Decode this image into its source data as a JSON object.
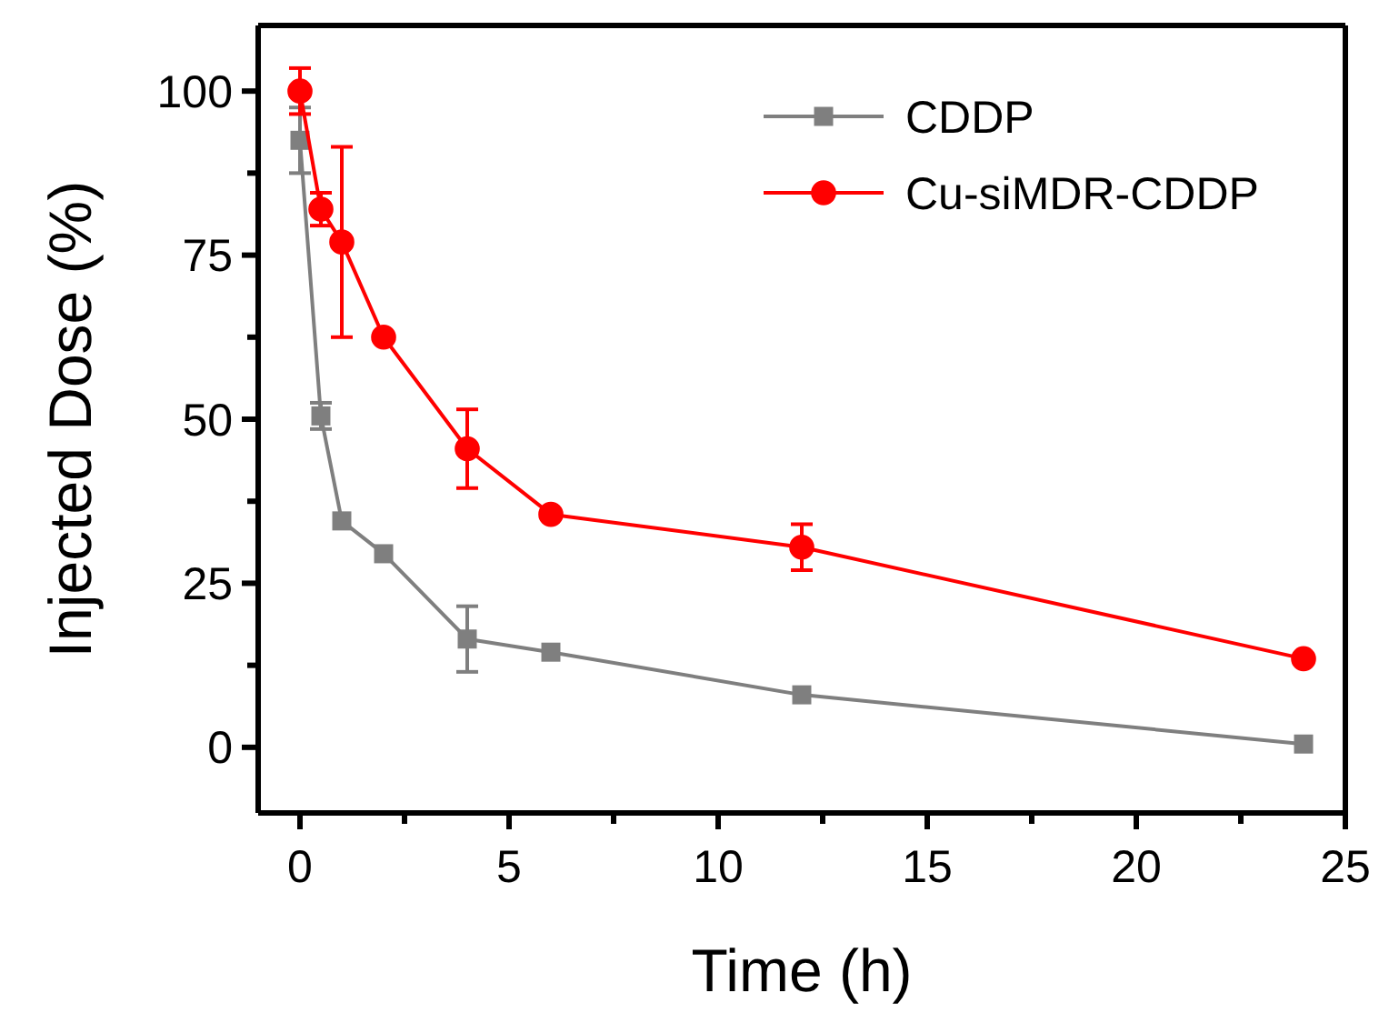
{
  "chart_data": {
    "type": "line",
    "xlabel": "Time (h)",
    "ylabel": "Injected Dose (%)",
    "xlim": [
      -1,
      25
    ],
    "ylim": [
      -10,
      110
    ],
    "xticks": [
      0,
      {
        "value": 2.5,
        "label": null
      },
      5,
      {
        "value": 7.5,
        "label": null
      },
      10,
      {
        "value": 12.5,
        "label": null
      },
      15,
      {
        "value": 17.5,
        "label": null
      },
      20,
      {
        "value": 22.5,
        "label": null
      },
      25
    ],
    "yticks": [
      0,
      {
        "value": 12.5,
        "label": null
      },
      25,
      {
        "value": 37.5,
        "label": null
      },
      50,
      {
        "value": 62.5,
        "label": null
      },
      75,
      {
        "value": 87.5,
        "label": null
      },
      100
    ],
    "grid": false,
    "legend": "top right",
    "line_style": "solid",
    "series": [
      {
        "name": "CDDP",
        "color": "#7f7f7f",
        "marker": "square",
        "x": [
          0,
          0.5,
          1,
          2,
          4,
          6,
          12,
          24
        ],
        "values": [
          92.5,
          50.5,
          34.5,
          29.5,
          16.5,
          14.5,
          8,
          0.5
        ],
        "errors": [
          5,
          2,
          null,
          null,
          5,
          null,
          null,
          null
        ]
      },
      {
        "name": "Cu-siMDR-CDDP",
        "color": "#ff0000",
        "marker": "circle",
        "x": [
          0,
          0.5,
          1,
          2,
          4,
          6,
          12,
          24
        ],
        "values": [
          100,
          82,
          77,
          62.5,
          45.5,
          35.5,
          30.5,
          13.5
        ],
        "errors": [
          3.5,
          2.5,
          14.5,
          null,
          6,
          null,
          3.5,
          null
        ]
      }
    ]
  }
}
